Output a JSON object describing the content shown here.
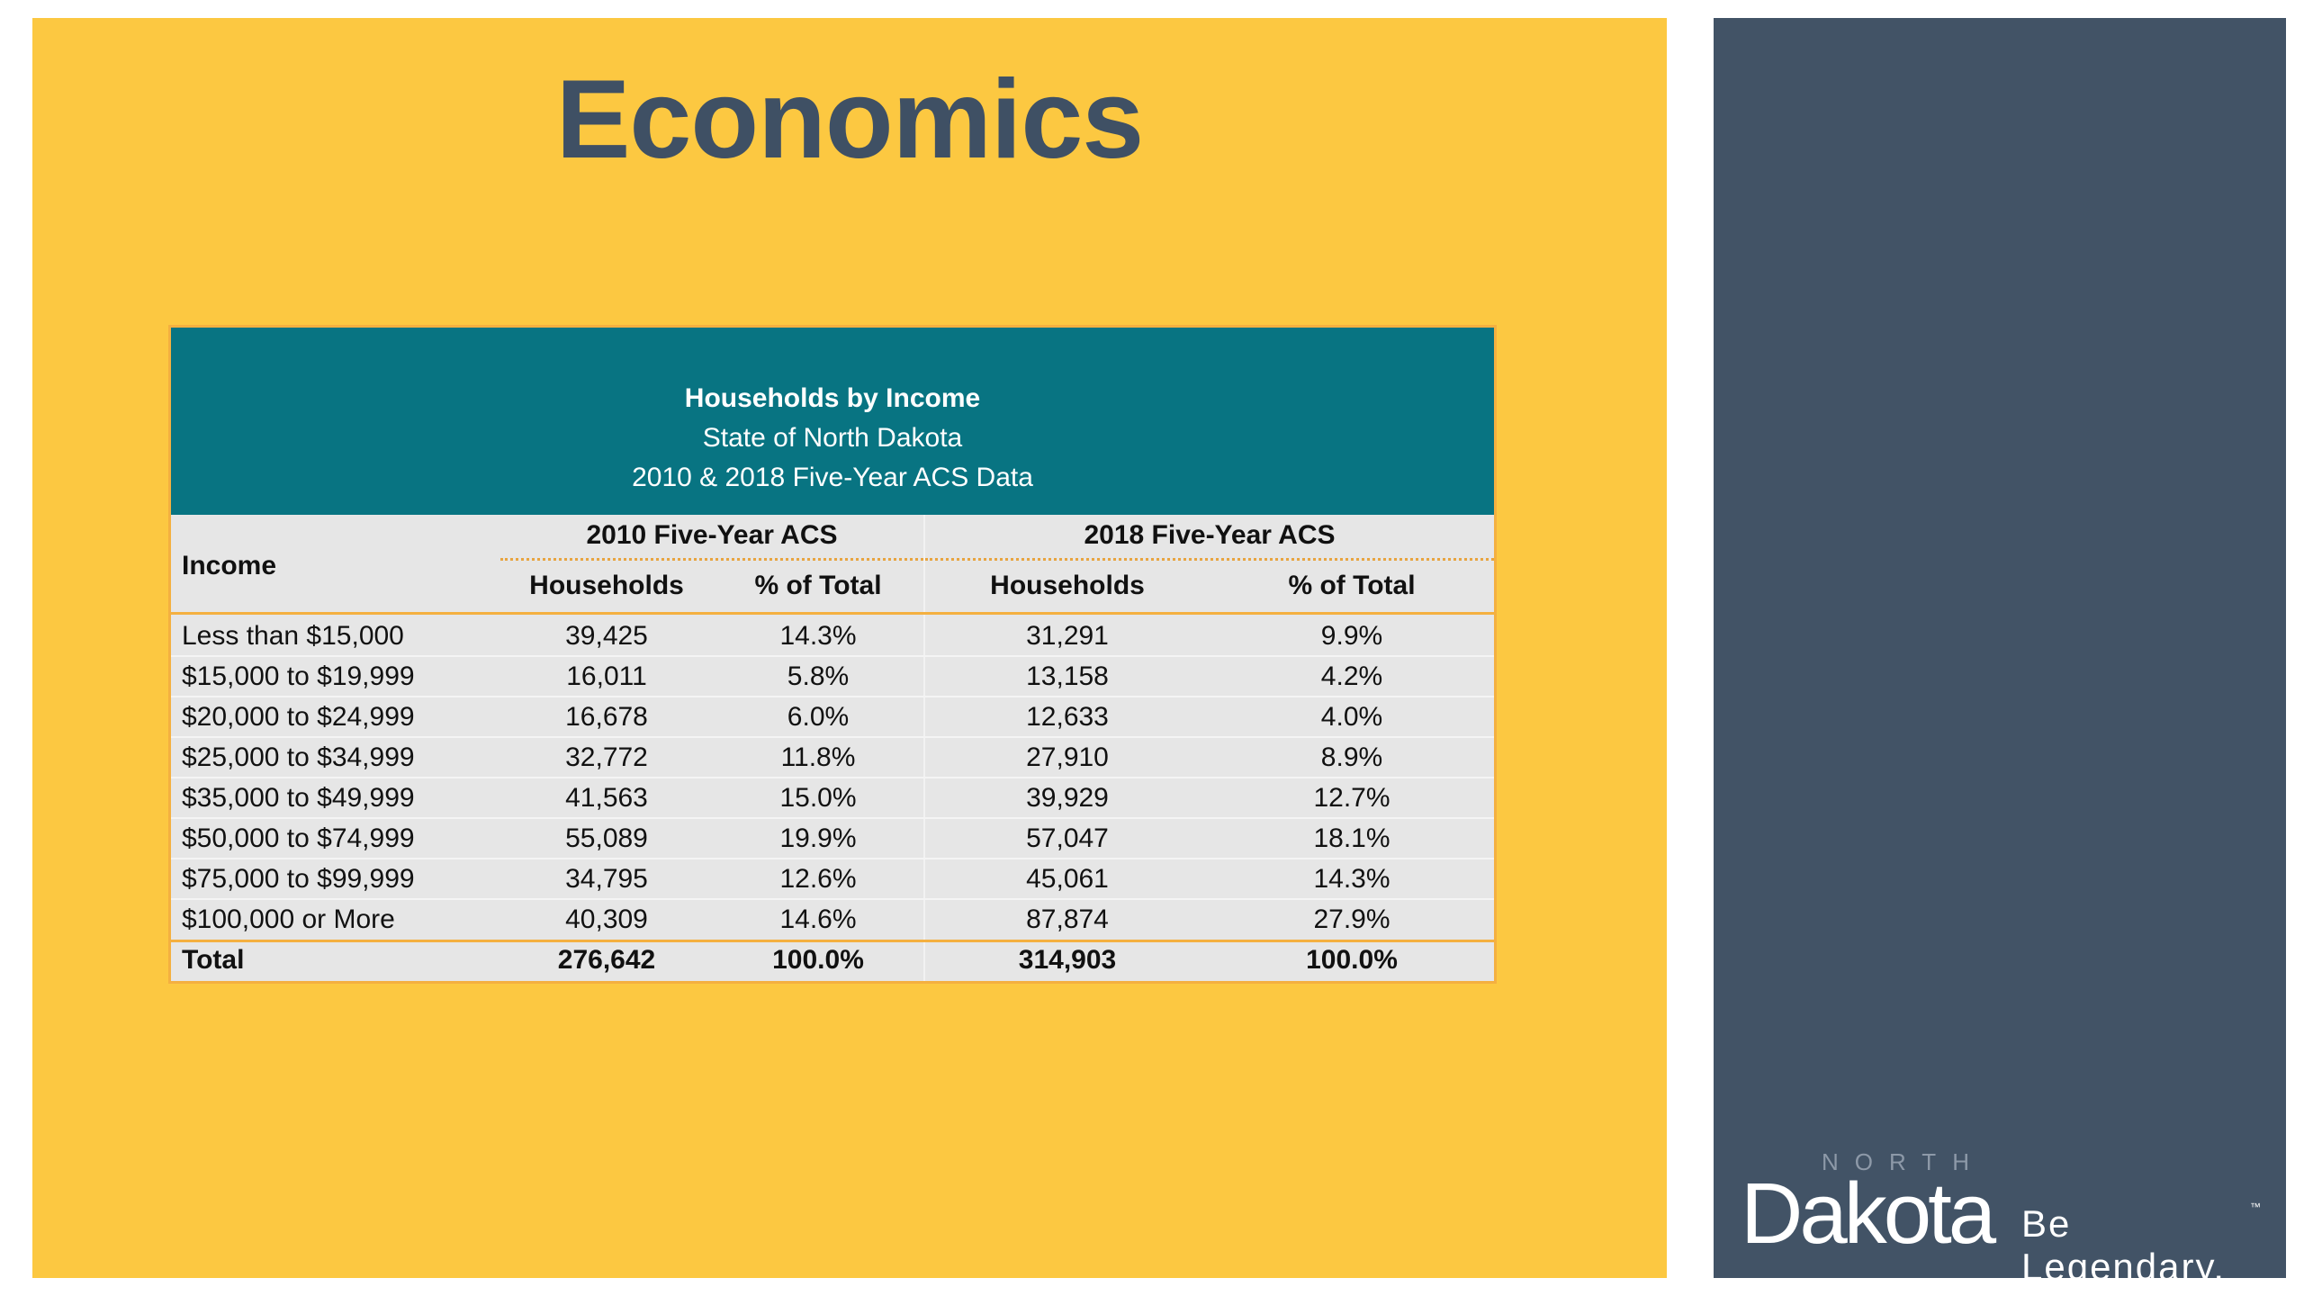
{
  "title": "Economics",
  "table": {
    "heading": "Households by Income",
    "subheading": "State of North Dakota",
    "subheading2": "2010 & 2018 Five-Year ACS Data",
    "income_header": "Income",
    "group_2010": "2010 Five-Year ACS",
    "group_2018": "2018 Five-Year ACS",
    "col_households": "Households",
    "col_percent": "% of Total",
    "rows": [
      {
        "income": "Less than $15,000",
        "h2010": "39,425",
        "p2010": "14.3%",
        "h2018": "31,291",
        "p2018": "9.9%"
      },
      {
        "income": "$15,000 to $19,999",
        "h2010": "16,011",
        "p2010": "5.8%",
        "h2018": "13,158",
        "p2018": "4.2%"
      },
      {
        "income": "$20,000 to $24,999",
        "h2010": "16,678",
        "p2010": "6.0%",
        "h2018": "12,633",
        "p2018": "4.0%"
      },
      {
        "income": "$25,000 to $34,999",
        "h2010": "32,772",
        "p2010": "11.8%",
        "h2018": "27,910",
        "p2018": "8.9%"
      },
      {
        "income": "$35,000 to $49,999",
        "h2010": "41,563",
        "p2010": "15.0%",
        "h2018": "39,929",
        "p2018": "12.7%"
      },
      {
        "income": "$50,000 to $74,999",
        "h2010": "55,089",
        "p2010": "19.9%",
        "h2018": "57,047",
        "p2018": "18.1%"
      },
      {
        "income": "$75,000 to $99,999",
        "h2010": "34,795",
        "p2010": "12.6%",
        "h2018": "45,061",
        "p2018": "14.3%"
      },
      {
        "income": "$100,000 or More",
        "h2010": "40,309",
        "p2010": "14.6%",
        "h2018": "87,874",
        "p2018": "27.9%"
      }
    ],
    "total": {
      "income": "Total",
      "h2010": "276,642",
      "p2010": "100.0%",
      "h2018": "314,903",
      "p2018": "100.0%"
    }
  },
  "logo": {
    "north": "NORTH",
    "dakota": "Dakota",
    "tagline": "Be Legendary.",
    "tm": "™"
  },
  "colors": {
    "slide_background": "#fcc841",
    "title": "#3f5064",
    "table_header": "#087482",
    "side_panel": "#425366",
    "table_accent": "#f4b040"
  }
}
